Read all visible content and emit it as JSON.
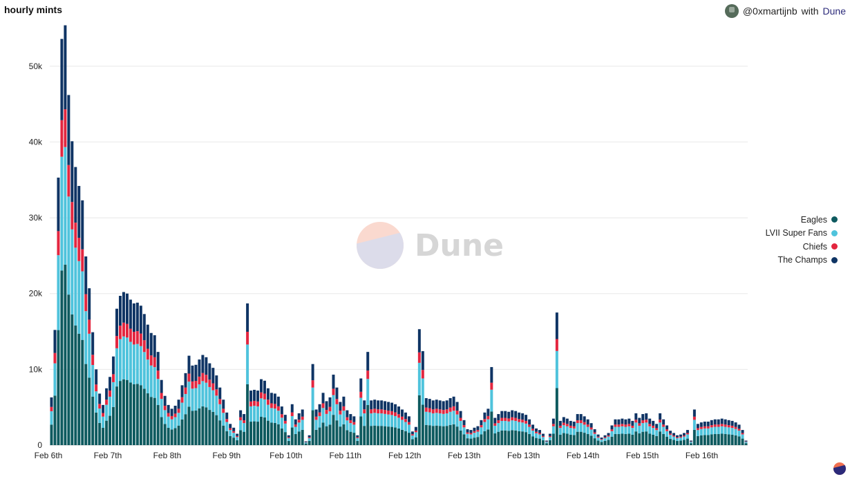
{
  "title": "hourly mints",
  "credit": {
    "user": "@0xmartijnb",
    "with": "with",
    "brand": "Dune"
  },
  "watermark": "Dune",
  "colors": {
    "eagles": "#0e5a5f",
    "super_fans": "#4fc3dc",
    "chiefs": "#e3263f",
    "champs": "#0f3464",
    "grid": "#e8e8e8"
  },
  "legend": [
    {
      "label": "Eagles",
      "color": "#0e5a5f"
    },
    {
      "label": "LVII Super Fans",
      "color": "#4fc3dc"
    },
    {
      "label": "Chiefs",
      "color": "#e3263f"
    },
    {
      "label": "The Champs",
      "color": "#0f3464"
    }
  ],
  "chart_data": {
    "type": "bar",
    "stacked": true,
    "ylim": [
      0,
      56000
    ],
    "yticks": [
      0,
      10000,
      20000,
      30000,
      40000,
      50000
    ],
    "ytick_labels": [
      "0",
      "10k",
      "20k",
      "30k",
      "40k",
      "50k"
    ],
    "x_labels": [
      "Feb 6th",
      "Feb 7th",
      "Feb 8th",
      "Feb 9th",
      "Feb 10th",
      "Feb 11th",
      "Feb 12th",
      "Feb 13th",
      "Feb 13th",
      "Feb 14th",
      "Feb 15th",
      "Feb 16th"
    ],
    "series_names": [
      "Eagles",
      "LVII Super Fans",
      "Chiefs",
      "The Champs"
    ],
    "shares": [
      0.43,
      0.28,
      0.09,
      0.2
    ],
    "totals": [
      6300,
      15200,
      35300,
      53600,
      55400,
      46200,
      40100,
      36700,
      34200,
      32300,
      24900,
      20700,
      14900,
      10000,
      6800,
      5300,
      7500,
      9000,
      11700,
      18000,
      19700,
      20200,
      20000,
      19200,
      18700,
      18800,
      18400,
      17300,
      15900,
      14800,
      14500,
      12300,
      8600,
      6500,
      5300,
      4800,
      5200,
      6000,
      7900,
      9500,
      11800,
      10500,
      10600,
      11300,
      11900,
      11600,
      10800,
      10200,
      9200,
      7600,
      6000,
      4300,
      2800,
      2300,
      1500,
      4600,
      4100,
      18700,
      7200,
      7300,
      7200,
      8700,
      8500,
      7500,
      6900,
      6800,
      6400,
      5100,
      4000,
      1300,
      5400,
      3400,
      4200,
      4700,
      500,
      1300,
      10700,
      4700,
      5400,
      6900,
      5800,
      6300,
      9300,
      7600,
      5700,
      6400,
      4600,
      4100,
      3800,
      1300,
      8800,
      5900,
      12300,
      5900,
      6000,
      5900,
      5900,
      5800,
      5700,
      5600,
      5400,
      5100,
      4700,
      4300,
      3800,
      1800,
      2400,
      15300,
      12400,
      6200,
      6100,
      5900,
      6000,
      5900,
      5800,
      5900,
      6200,
      6400,
      5700,
      4500,
      3300,
      2100,
      2000,
      2300,
      2500,
      3300,
      4300,
      4800,
      10300,
      3600,
      4100,
      4500,
      4500,
      4400,
      4600,
      4500,
      4300,
      4200,
      4000,
      3400,
      2700,
      2200,
      2000,
      1500,
      600,
      1500,
      3500,
      17500,
      3200,
      3700,
      3500,
      3200,
      3100,
      4100,
      4100,
      3800,
      3400,
      2900,
      2100,
      1400,
      1000,
      1300,
      1600,
      2600,
      3400,
      3400,
      3500,
      3400,
      3500,
      3200,
      4200,
      3600,
      4100,
      4200,
      3500,
      3200,
      2800,
      4200,
      3400,
      2600,
      1900,
      1600,
      1300,
      1400,
      1600,
      2000,
      600,
      4700,
      2800,
      3000,
      3100,
      3100,
      3300,
      3400,
      3400,
      3500,
      3400,
      3300,
      3200,
      3000,
      2700,
      2000,
      600
    ]
  }
}
